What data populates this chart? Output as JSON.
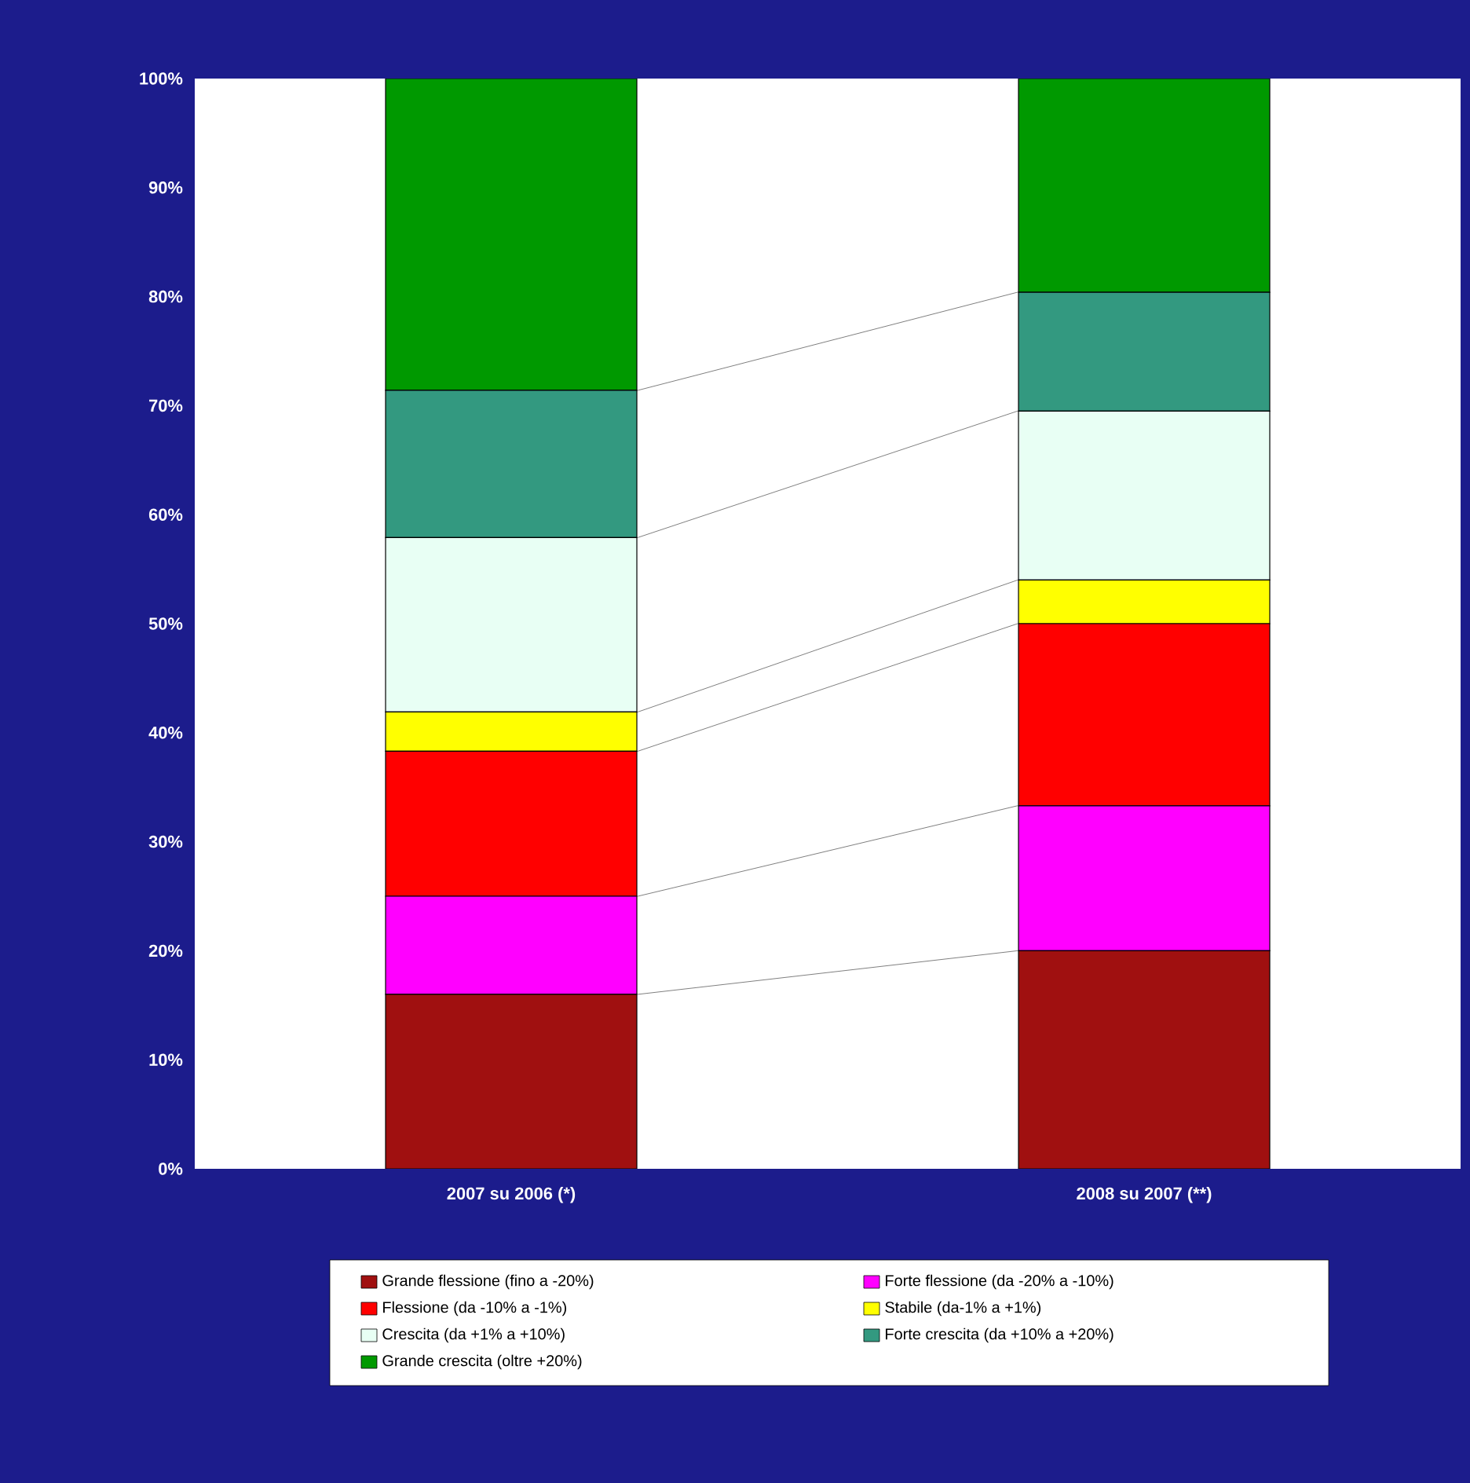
{
  "chart_data": {
    "type": "bar",
    "stacked": true,
    "categories": [
      "2007 su 2006 (*)",
      "2008 su 2007 (**)"
    ],
    "series": [
      {
        "name": "Grande flessione (fino a -20%)",
        "color": "#a01010",
        "values": [
          16,
          20
        ]
      },
      {
        "name": "Forte flessione (da -20% a -10%)",
        "color": "#ff00ff",
        "values": [
          9,
          13.3
        ]
      },
      {
        "name": "Flessione (da -10% a -1%)",
        "color": "#ff0000",
        "values": [
          13.3,
          16.7
        ]
      },
      {
        "name": "Stabile (da-1% a +1%)",
        "color": "#ffff00",
        "values": [
          3.6,
          4
        ]
      },
      {
        "name": "Crescita (da +1% a +10%)",
        "color": "#e8fff4",
        "values": [
          16,
          15.5
        ]
      },
      {
        "name": "Forte crescita (da +10% a +20%)",
        "color": "#339980",
        "values": [
          13.5,
          10.9
        ]
      },
      {
        "name": "Grande crescita (oltre +20%)",
        "color": "#009900",
        "values": [
          28.6,
          19.6
        ]
      }
    ],
    "ylim": [
      0,
      100
    ],
    "yticks": [
      {
        "value": 0,
        "label": "0%"
      },
      {
        "value": 10,
        "label": "10%"
      },
      {
        "value": 20,
        "label": "20%"
      },
      {
        "value": 30,
        "label": "30%"
      },
      {
        "value": 40,
        "label": "40%"
      },
      {
        "value": 50,
        "label": "50%"
      },
      {
        "value": 60,
        "label": "60%"
      },
      {
        "value": 70,
        "label": "70%"
      },
      {
        "value": 80,
        "label": "80%"
      },
      {
        "value": 90,
        "label": "90%"
      },
      {
        "value": 100,
        "label": "100%"
      }
    ],
    "grid": false,
    "legend": "bottom"
  }
}
